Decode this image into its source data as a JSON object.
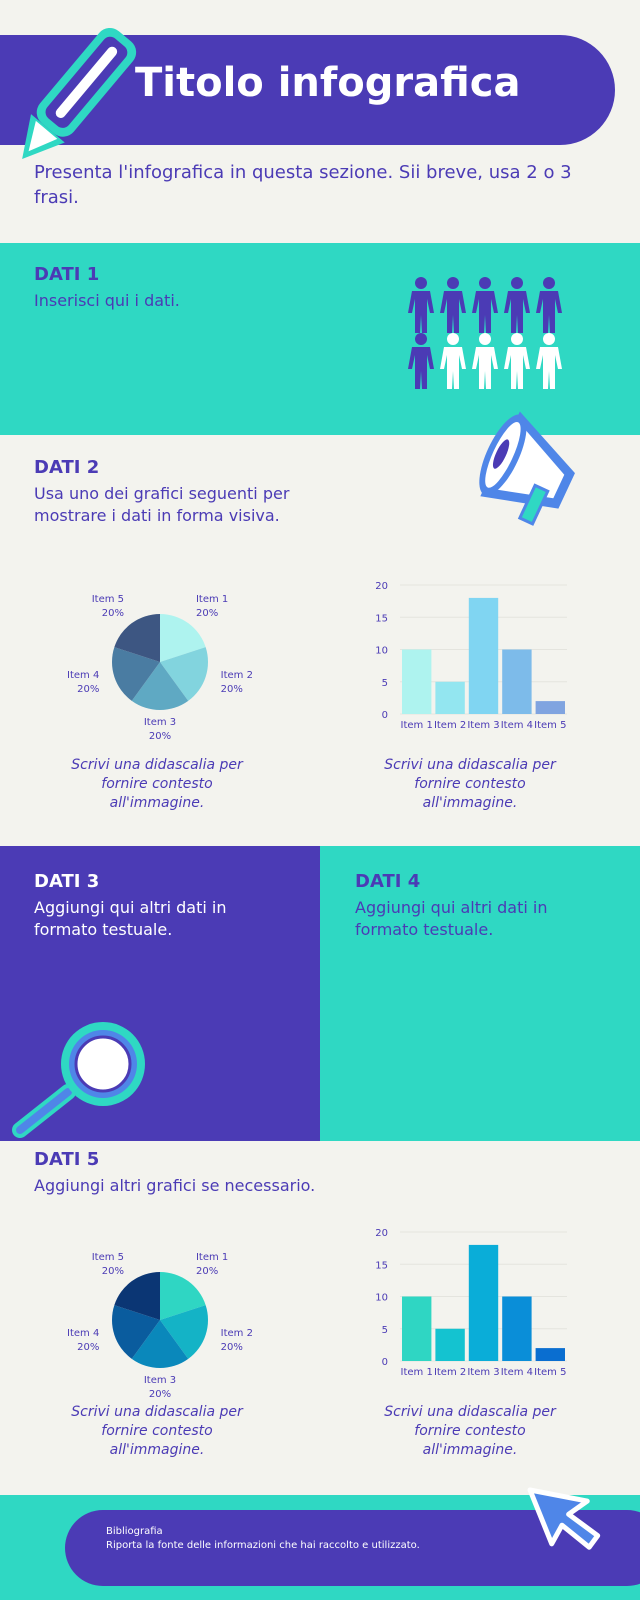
{
  "header": {
    "title": "Titolo infografica",
    "intro": "Presenta l'infografica in questa sezione. Sii breve, usa 2 o 3 frasi."
  },
  "sections": [
    {
      "title": "DATI 1",
      "text": "Inserisci qui i dati."
    },
    {
      "title": "DATI 2",
      "text": "Usa uno dei grafici seguenti per mostrare i dati in forma visiva."
    },
    {
      "title": "DATI 3",
      "text": "Aggiungi qui altri dati in formato testuale."
    },
    {
      "title": "DATI 4",
      "text": "Aggiungi qui altri dati in formato testuale."
    },
    {
      "title": "DATI 5",
      "text": "Aggiungi altri grafici se necessario."
    }
  ],
  "chart_data": [
    {
      "type": "pie",
      "categories": [
        "Item 1",
        "Item 2",
        "Item 3",
        "Item 4",
        "Item 5"
      ],
      "values": [
        20,
        20,
        20,
        20,
        20
      ],
      "value_labels": [
        "20%",
        "20%",
        "20%",
        "20%",
        "20%"
      ],
      "colors": [
        "#aef3ef",
        "#82d4de",
        "#5fa9c3",
        "#4a7ca2",
        "#3d5682"
      ]
    },
    {
      "type": "bar",
      "categories": [
        "Item 1",
        "Item 2",
        "Item 3",
        "Item 4",
        "Item 5"
      ],
      "values": [
        10,
        5,
        18,
        10,
        2
      ],
      "colors": [
        "#aef3ef",
        "#93e6f0",
        "#80d5f2",
        "#7dbbea",
        "#80a4e0"
      ],
      "ylim": [
        0,
        20
      ],
      "yticks": [
        0,
        5,
        10,
        15,
        20
      ],
      "grid": true
    },
    {
      "type": "pie",
      "categories": [
        "Item 1",
        "Item 2",
        "Item 3",
        "Item 4",
        "Item 5"
      ],
      "values": [
        20,
        20,
        20,
        20,
        20
      ],
      "value_labels": [
        "20%",
        "20%",
        "20%",
        "20%",
        "20%"
      ],
      "colors": [
        "#2fd6c3",
        "#14b3c6",
        "#0a88bb",
        "#0a5c9e",
        "#0b3674"
      ]
    },
    {
      "type": "bar",
      "categories": [
        "Item 1",
        "Item 2",
        "Item 3",
        "Item 4",
        "Item 5"
      ],
      "values": [
        10,
        5,
        18,
        10,
        2
      ],
      "colors": [
        "#2fd6c3",
        "#14c3d0",
        "#0aadd8",
        "#0a8ed8",
        "#0a6ed0"
      ],
      "ylim": [
        0,
        20
      ],
      "yticks": [
        0,
        5,
        10,
        15,
        20
      ],
      "grid": true
    }
  ],
  "captions": [
    "Scrivi una didascalia per fornire contesto all'immagine.",
    "Scrivi una didascalia per fornire contesto all'immagine.",
    "Scrivi una didascalia per fornire contesto all'immagine.",
    "Scrivi una didascalia per fornire contesto all'immagine."
  ],
  "footer": {
    "title": "Bibliografia",
    "text": "Riporta la fonte delle informazioni che hai raccolto e utilizzato."
  }
}
